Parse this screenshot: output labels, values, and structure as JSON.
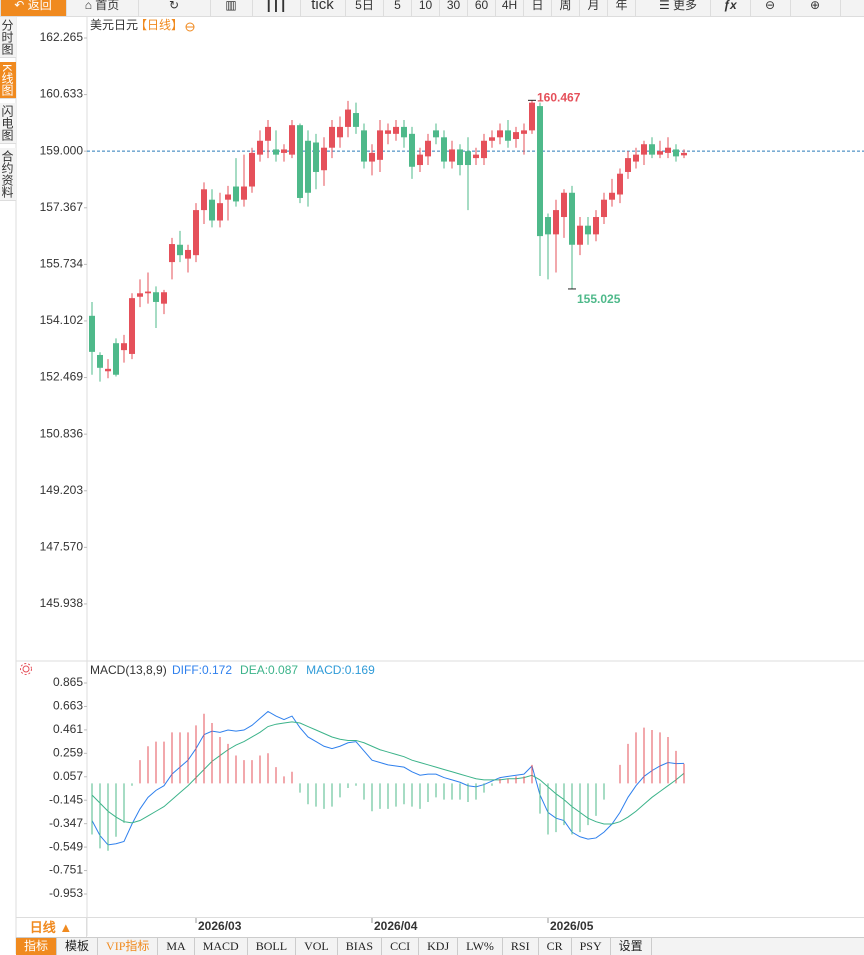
{
  "toolbar": {
    "back": "返回",
    "home": "首页",
    "periods": [
      "tick",
      "5日",
      "5",
      "10",
      "30",
      "60",
      "4H",
      "日",
      "周",
      "月",
      "年"
    ],
    "more": "更多"
  },
  "sidebar": [
    "分时图",
    "K线图",
    "闪电图",
    "合约资料"
  ],
  "bottom": {
    "period": "日线 ▲",
    "tabs": [
      "指标",
      "模板",
      "VIP指标",
      "MA",
      "MACD",
      "BOLL",
      "VOL",
      "BIAS",
      "CCI",
      "KDJ",
      "LW%",
      "RSI",
      "CR",
      "PSY",
      "设置"
    ]
  },
  "chart_data": [
    {
      "type": "candlestick",
      "title": "美元日元",
      "subtitle": "【日线】",
      "categories": [
        null,
        null,
        null,
        null,
        null,
        null,
        null,
        null,
        null,
        null,
        null,
        null,
        null,
        "2026/03",
        null,
        null,
        null,
        null,
        null,
        null,
        null,
        null,
        null,
        null,
        null,
        null,
        null,
        null,
        null,
        null,
        null,
        null,
        null,
        null,
        null,
        "2026/04",
        null,
        null,
        null,
        null,
        null,
        null,
        null,
        null,
        null,
        null,
        null,
        null,
        null,
        null,
        null,
        null,
        null,
        null,
        null,
        null,
        null,
        "2026/05",
        null,
        null,
        null,
        null,
        null,
        null,
        null,
        null,
        null,
        null,
        null,
        null,
        null,
        null,
        null,
        null,
        null
      ],
      "open": [
        154.25,
        153.12,
        152.65,
        153.46,
        153.26,
        153.15,
        154.8,
        154.9,
        154.93,
        154.6,
        155.8,
        156.3,
        155.9,
        156.0,
        157.3,
        157.6,
        157.0,
        157.6,
        157.98,
        157.6,
        157.98,
        158.9,
        159.3,
        159.05,
        158.95,
        158.9,
        159.75,
        159.3,
        159.25,
        158.45,
        159.1,
        159.4,
        159.7,
        160.1,
        159.6,
        158.7,
        158.75,
        159.5,
        159.5,
        159.7,
        159.5,
        158.6,
        158.85,
        159.6,
        159.4,
        158.7,
        159.05,
        159.0,
        158.8,
        158.8,
        159.3,
        159.4,
        159.6,
        159.35,
        159.5,
        159.6,
        160.3,
        157.1,
        156.6,
        157.1,
        157.8,
        156.3,
        156.85,
        156.6,
        157.1,
        157.6,
        157.75,
        158.4,
        158.7,
        158.9,
        159.2,
        158.9,
        158.95,
        159.05,
        158.88
      ],
      "high": [
        154.65,
        153.2,
        153.0,
        153.6,
        153.7,
        154.9,
        155.3,
        155.5,
        155.1,
        155.0,
        156.5,
        156.7,
        156.3,
        157.5,
        158.1,
        157.9,
        157.8,
        158.0,
        158.8,
        158.9,
        159.1,
        159.6,
        159.9,
        159.6,
        159.2,
        159.9,
        159.8,
        159.6,
        159.5,
        159.4,
        159.9,
        160.0,
        160.45,
        160.4,
        159.8,
        159.2,
        159.9,
        159.8,
        159.9,
        159.9,
        159.7,
        159.1,
        159.5,
        159.8,
        159.6,
        159.3,
        159.2,
        159.4,
        159.1,
        159.5,
        159.6,
        159.8,
        159.9,
        159.7,
        159.8,
        160.467,
        160.4,
        157.2,
        157.6,
        157.9,
        158.0,
        157.1,
        157.1,
        157.3,
        157.8,
        158.2,
        158.5,
        159.0,
        159.1,
        159.3,
        159.4,
        159.3,
        159.4,
        159.2,
        159.05
      ],
      "low": [
        152.55,
        152.35,
        152.45,
        152.5,
        152.9,
        153.0,
        154.5,
        154.6,
        153.9,
        154.3,
        155.3,
        155.8,
        155.5,
        155.8,
        156.9,
        156.8,
        156.8,
        157.0,
        157.4,
        157.4,
        157.8,
        158.7,
        158.8,
        158.7,
        158.7,
        158.8,
        157.5,
        157.4,
        157.9,
        158.0,
        158.8,
        159.1,
        159.4,
        159.5,
        158.5,
        158.3,
        158.4,
        159.2,
        159.3,
        159.1,
        158.2,
        158.4,
        158.6,
        159.2,
        158.5,
        158.5,
        158.3,
        157.3,
        158.6,
        158.6,
        159.1,
        159.2,
        159.1,
        159.1,
        158.9,
        159.5,
        155.4,
        155.3,
        155.5,
        156.5,
        155.025,
        156.0,
        156.3,
        156.4,
        156.9,
        157.4,
        157.5,
        158.2,
        158.5,
        158.6,
        158.8,
        158.8,
        158.8,
        158.7,
        158.8
      ],
      "close": [
        153.21,
        152.75,
        152.72,
        152.55,
        153.46,
        154.76,
        154.9,
        154.95,
        154.65,
        154.93,
        156.32,
        156.0,
        156.15,
        157.3,
        157.9,
        157.0,
        157.5,
        157.75,
        157.55,
        157.98,
        158.95,
        159.3,
        159.7,
        158.9,
        159.05,
        159.75,
        157.65,
        157.8,
        158.4,
        159.1,
        159.7,
        159.7,
        160.2,
        159.7,
        158.7,
        158.95,
        159.6,
        159.6,
        159.7,
        159.4,
        158.55,
        158.9,
        159.3,
        159.4,
        158.7,
        159.05,
        158.6,
        158.6,
        158.9,
        159.3,
        159.4,
        159.6,
        159.3,
        159.55,
        159.6,
        160.4,
        156.55,
        156.6,
        157.3,
        157.8,
        156.3,
        156.85,
        156.6,
        157.1,
        157.6,
        157.8,
        158.35,
        158.8,
        158.9,
        159.2,
        158.9,
        159.0,
        159.1,
        158.85,
        158.95
      ],
      "up_color": "#e5505a",
      "down_color": "#4eb98a",
      "ylim": [
        144.32,
        162.842
      ],
      "yticks": [
        162.265,
        160.633,
        {
          "value": 159,
          "label": "159.000"
        },
        157.367,
        155.734,
        154.102,
        152.469,
        150.836,
        149.203,
        {
          "value": 147.57,
          "label": "147.570"
        },
        145.938
      ],
      "reference_line": 159,
      "annotations": [
        {
          "value": 160.467,
          "color": "#e5505a"
        },
        {
          "value": 155.025,
          "color": "#4eb98a"
        }
      ]
    },
    {
      "type": "macd",
      "title": "MACD(13,8,9)",
      "series": [
        {
          "name": "DIFF:0.172",
          "color": "#2f80ed",
          "values": [
            -0.32,
            -0.45,
            -0.53,
            -0.52,
            -0.5,
            -0.35,
            -0.22,
            -0.12,
            -0.06,
            -0.02,
            0.08,
            0.14,
            0.2,
            0.3,
            0.42,
            0.45,
            0.44,
            0.46,
            0.45,
            0.46,
            0.5,
            0.56,
            0.62,
            0.58,
            0.55,
            0.58,
            0.48,
            0.4,
            0.36,
            0.32,
            0.3,
            0.32,
            0.35,
            0.36,
            0.28,
            0.2,
            0.18,
            0.16,
            0.15,
            0.14,
            0.1,
            0.07,
            0.08,
            0.08,
            0.05,
            0.03,
            0.01,
            -0.02,
            -0.03,
            -0.01,
            0.02,
            0.05,
            0.06,
            0.07,
            0.08,
            0.15,
            -0.1,
            -0.25,
            -0.3,
            -0.32,
            -0.42,
            -0.46,
            -0.48,
            -0.47,
            -0.42,
            -0.35,
            -0.25,
            -0.12,
            -0.02,
            0.06,
            0.11,
            0.15,
            0.18,
            0.17,
            0.172
          ]
        },
        {
          "name": "DEA:0.087",
          "color": "#3cb38a",
          "values": [
            -0.1,
            -0.17,
            -0.24,
            -0.29,
            -0.33,
            -0.34,
            -0.32,
            -0.28,
            -0.24,
            -0.2,
            -0.14,
            -0.08,
            -0.02,
            0.05,
            0.12,
            0.19,
            0.24,
            0.29,
            0.33,
            0.36,
            0.4,
            0.44,
            0.49,
            0.51,
            0.52,
            0.53,
            0.52,
            0.49,
            0.46,
            0.43,
            0.4,
            0.38,
            0.37,
            0.37,
            0.35,
            0.32,
            0.29,
            0.27,
            0.25,
            0.23,
            0.2,
            0.18,
            0.16,
            0.14,
            0.12,
            0.1,
            0.08,
            0.06,
            0.04,
            0.03,
            0.03,
            0.03,
            0.04,
            0.04,
            0.05,
            0.07,
            0.03,
            -0.03,
            -0.09,
            -0.14,
            -0.2,
            -0.25,
            -0.3,
            -0.33,
            -0.35,
            -0.35,
            -0.33,
            -0.29,
            -0.24,
            -0.18,
            -0.12,
            -0.07,
            -0.02,
            0.03,
            0.087
          ]
        },
        {
          "name": "MACD:0.169",
          "color": "#2f9bd8",
          "up_color": "#e5505a",
          "down_color": "#4eb98a",
          "values": [
            -0.44,
            -0.56,
            -0.58,
            -0.46,
            -0.34,
            -0.02,
            0.2,
            0.32,
            0.36,
            0.36,
            0.44,
            0.44,
            0.44,
            0.5,
            0.6,
            0.52,
            0.4,
            0.34,
            0.24,
            0.2,
            0.2,
            0.24,
            0.26,
            0.14,
            0.06,
            0.1,
            -0.08,
            -0.18,
            -0.2,
            -0.22,
            -0.2,
            -0.12,
            -0.04,
            -0.02,
            -0.14,
            -0.24,
            -0.22,
            -0.22,
            -0.2,
            -0.18,
            -0.2,
            -0.22,
            -0.16,
            -0.12,
            -0.14,
            -0.14,
            -0.14,
            -0.16,
            -0.14,
            -0.08,
            -0.02,
            0.04,
            0.04,
            0.06,
            0.06,
            0.16,
            -0.26,
            -0.44,
            -0.42,
            -0.36,
            -0.44,
            -0.42,
            -0.36,
            -0.28,
            -0.14,
            0.0,
            0.16,
            0.34,
            0.44,
            0.48,
            0.46,
            0.44,
            0.4,
            0.28,
            0.169
          ]
        }
      ],
      "ylim": [
        -1.134,
        1.046
      ],
      "yticks": [
        0.865,
        0.663,
        0.461,
        0.259,
        0.057,
        -0.145,
        -0.347,
        -0.549,
        -0.751,
        -0.953
      ]
    }
  ]
}
